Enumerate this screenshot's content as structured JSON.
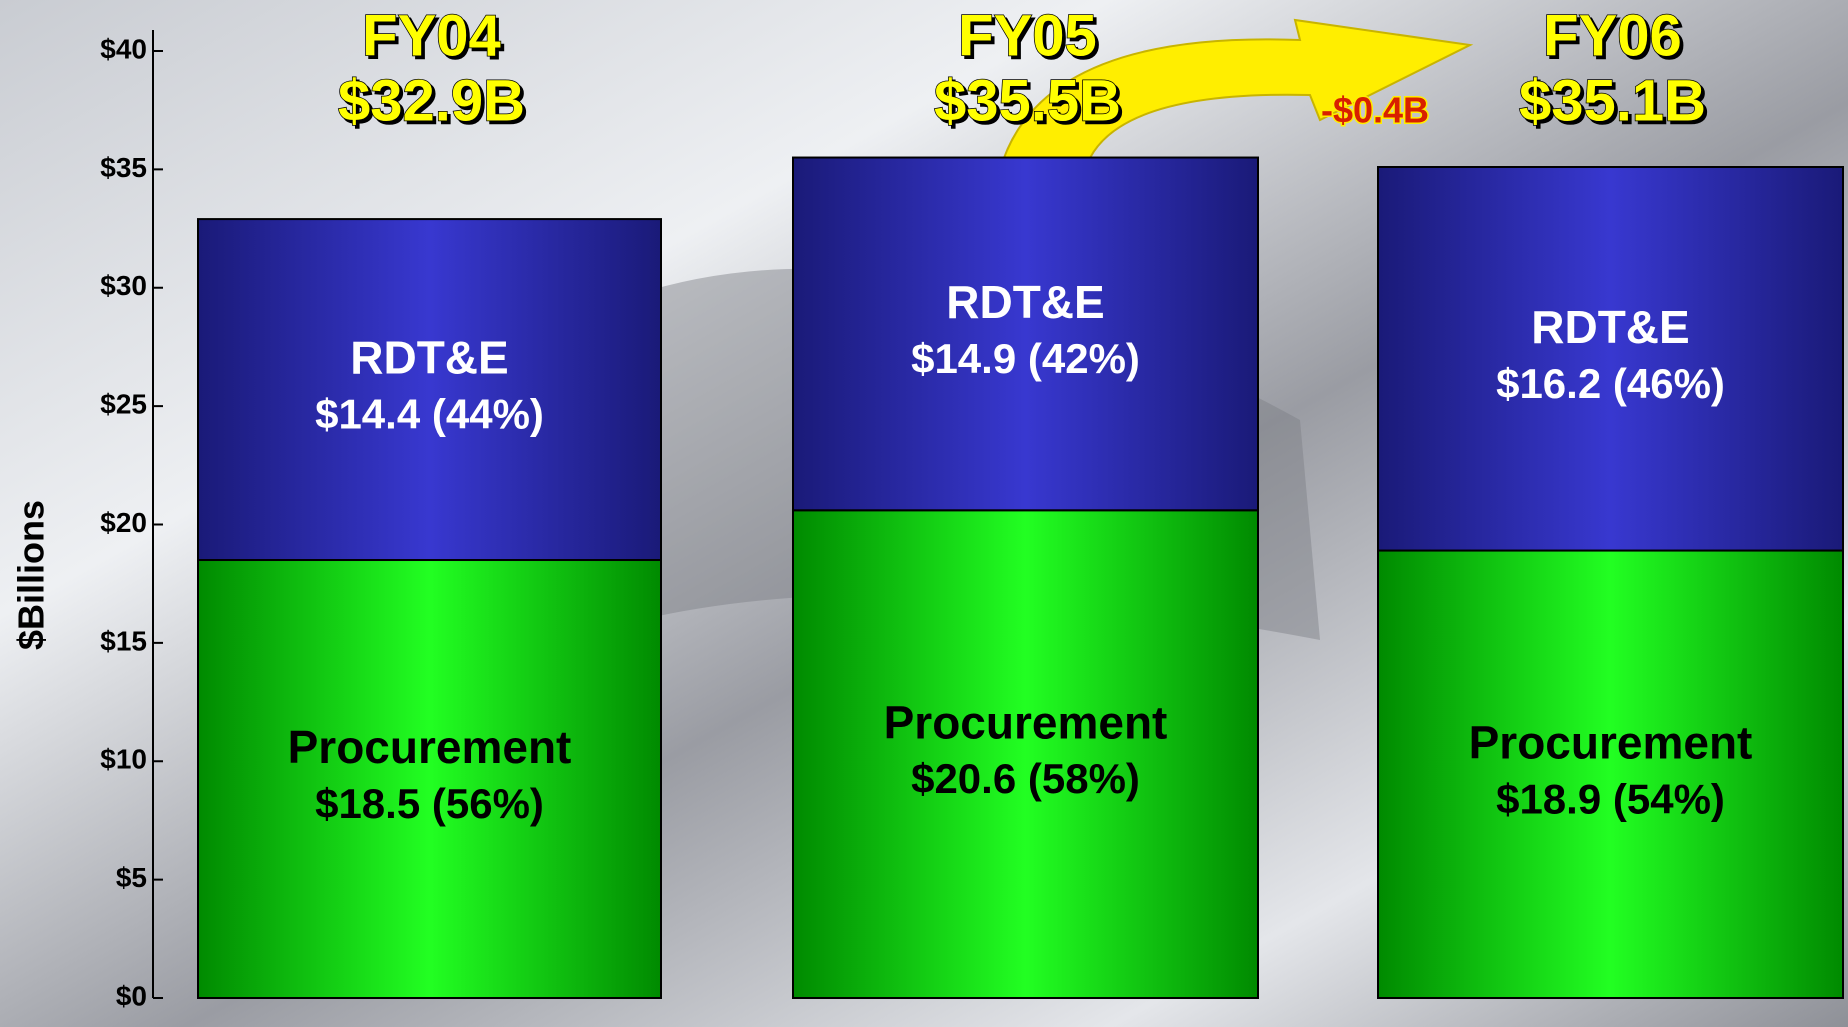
{
  "chart_data": {
    "type": "stacked_bar",
    "y_axis_label": "$Billions",
    "categories": [
      "FY04",
      "FY05",
      "FY06"
    ],
    "totals": {
      "values": [
        32.9,
        35.5,
        35.1
      ],
      "value_labels": [
        "$32.9B",
        "$35.5B",
        "$35.1B"
      ]
    },
    "series": [
      {
        "name": "Procurement",
        "color": "#00e000",
        "values": [
          18.5,
          20.6,
          18.9
        ],
        "value_labels": [
          "$18.5 (56%)",
          "$20.6 (58%)",
          "$18.9 (54%)"
        ]
      },
      {
        "name": "RDT&E",
        "color": "#2a2ab8",
        "values": [
          14.4,
          14.9,
          16.2
        ],
        "value_labels": [
          "$14.4 (44%)",
          "$14.9 (42%)",
          "$16.2 (46%)"
        ]
      }
    ],
    "annotation": {
      "value": -0.4,
      "label": "-$0.4B"
    },
    "ylim": [
      0,
      41
    ],
    "yticks": [
      {
        "value": 0,
        "label": "$0"
      },
      {
        "value": 5,
        "label": "$5"
      },
      {
        "value": 10,
        "label": "$10"
      },
      {
        "value": 15,
        "label": "$15"
      },
      {
        "value": 20,
        "label": "$20"
      },
      {
        "value": 25,
        "label": "$25"
      },
      {
        "value": 30,
        "label": "$30"
      },
      {
        "value": 35,
        "label": "$35"
      },
      {
        "value": 40,
        "label": "$40"
      }
    ]
  }
}
